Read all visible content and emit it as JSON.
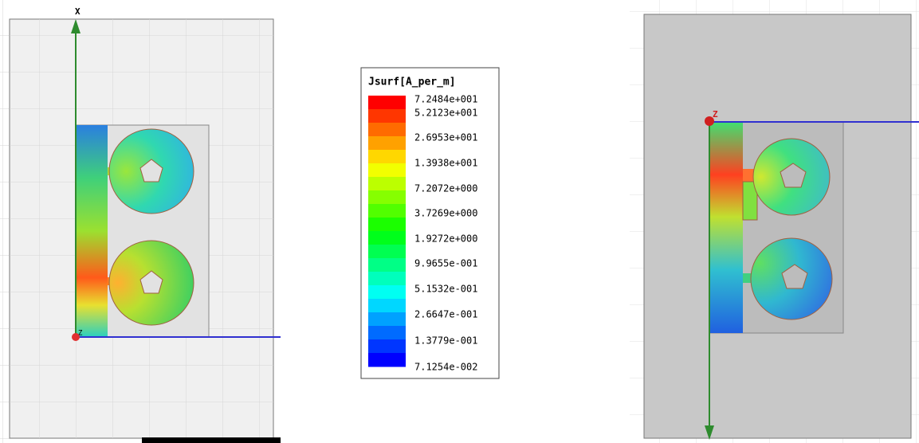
{
  "left_view": {
    "x_axis_label": "X",
    "origin_label": "Z"
  },
  "legend": {
    "title": "Jsurf[A_per_m]",
    "labels": [
      "7.2484e+001",
      "5.2123e+001",
      "2.6953e+001",
      "1.3938e+001",
      "7.2072e+000",
      "3.7269e+000",
      "1.9272e+000",
      "9.9655e-001",
      "5.1532e-001",
      "2.6647e-001",
      "1.3779e-001",
      "7.1254e-002"
    ]
  },
  "right_view": {
    "origin_label": "Z"
  }
}
